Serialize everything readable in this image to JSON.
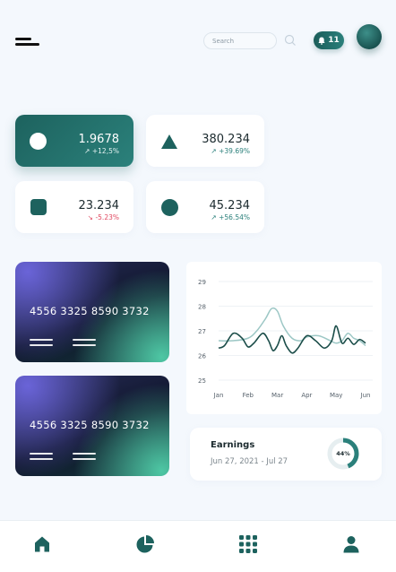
{
  "header": {
    "search_placeholder": "Search",
    "notification_count": "11"
  },
  "stats": [
    {
      "value": "1.9678",
      "change": "+12,5%",
      "direction": "up",
      "shape": "circle",
      "active": true
    },
    {
      "value": "380.234",
      "change": "+39.69%",
      "direction": "up",
      "shape": "triangle",
      "active": false
    },
    {
      "value": "23.234",
      "change": "-5.23%",
      "direction": "down",
      "shape": "square",
      "active": false
    },
    {
      "value": "45.234",
      "change": "+56.54%",
      "direction": "up",
      "shape": "circle",
      "active": false
    }
  ],
  "cards": [
    {
      "number": "4556 3325 8590 3732"
    },
    {
      "number": "4556 3325 8590 3732"
    }
  ],
  "chart_data": {
    "type": "line",
    "categories": [
      "Jan",
      "Feb",
      "Mar",
      "Apr",
      "May",
      "Jun"
    ],
    "ylim": [
      25,
      29
    ],
    "yticks": [
      "25",
      "26",
      "27",
      "28",
      "29"
    ],
    "series": [
      {
        "color": "#1b4d49",
        "x": [
          0,
          0.2,
          0.5,
          0.8,
          1.0,
          1.2,
          1.5,
          1.7,
          1.85,
          2.0,
          2.15,
          2.3,
          2.5,
          2.7,
          3.0,
          3.3,
          3.6,
          3.85,
          4.0,
          4.2,
          4.4,
          4.6,
          4.8,
          5.0
        ],
        "values": [
          26.3,
          26.4,
          26.9,
          26.7,
          26.35,
          26.5,
          26.9,
          26.6,
          26.2,
          26.4,
          26.8,
          26.4,
          26.1,
          26.3,
          26.8,
          26.6,
          26.3,
          26.6,
          27.2,
          26.5,
          26.7,
          26.45,
          26.65,
          26.5
        ]
      },
      {
        "color": "#9cc7c5",
        "x": [
          0,
          0.5,
          1.0,
          1.3,
          1.6,
          1.8,
          2.0,
          2.2,
          2.5,
          2.8,
          3.0,
          3.4,
          3.8,
          4.0,
          4.2,
          4.4,
          4.6,
          4.8,
          5.0
        ],
        "values": [
          26.6,
          26.6,
          26.7,
          27.0,
          27.5,
          27.9,
          27.8,
          27.2,
          26.7,
          26.6,
          26.75,
          26.8,
          26.6,
          26.5,
          26.6,
          26.9,
          26.7,
          26.6,
          26.4
        ]
      }
    ]
  },
  "earnings": {
    "title": "Earnings",
    "date_range": "Jun 27, 2021 - Jul 27",
    "percent": 44,
    "percent_label": "44%"
  },
  "colors": {
    "accent": "#1d625e",
    "negative": "#e0475f"
  },
  "nav": [
    "home-icon",
    "pie-chart-icon",
    "grid-icon",
    "user-icon"
  ]
}
